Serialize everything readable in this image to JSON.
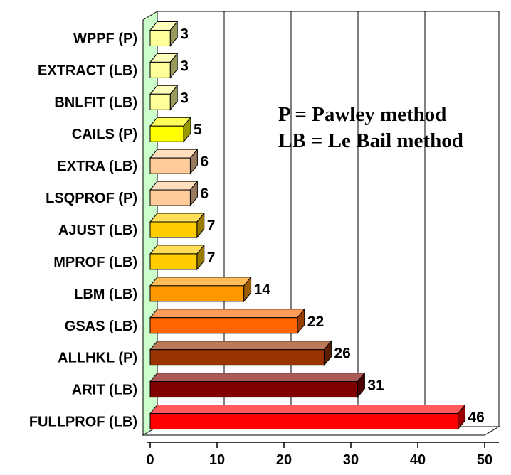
{
  "chart_data": {
    "type": "bar",
    "orientation": "horizontal",
    "three_d": true,
    "categories": [
      "WPPF (P)",
      "EXTRACT (LB)",
      "BNLFIT (LB)",
      "CAILS (P)",
      "EXTRA (LB)",
      "LSQPROF (P)",
      "AJUST (LB)",
      "MPROF (LB)",
      "LBM (LB)",
      "GSAS (LB)",
      "ALLHKL (P)",
      "ARIT (LB)",
      "FULLPROF (LB)"
    ],
    "values": [
      3,
      3,
      3,
      5,
      6,
      6,
      7,
      7,
      14,
      22,
      26,
      31,
      46
    ],
    "colors": [
      "#ffff99",
      "#ffff99",
      "#ffff99",
      "#ffff00",
      "#ffcc99",
      "#ffcc99",
      "#ffcc00",
      "#ffcc00",
      "#ff9900",
      "#ff6600",
      "#993300",
      "#800000",
      "#ff0000"
    ],
    "xlim": [
      0,
      50
    ],
    "xticks": [
      "0",
      "10",
      "20",
      "30",
      "40",
      "50"
    ],
    "grid": true,
    "wall_color": "#ccffcc",
    "title": "",
    "xlabel": "",
    "ylabel": "",
    "annotation": [
      "P = Pawley method",
      "LB = Le Bail method"
    ]
  }
}
